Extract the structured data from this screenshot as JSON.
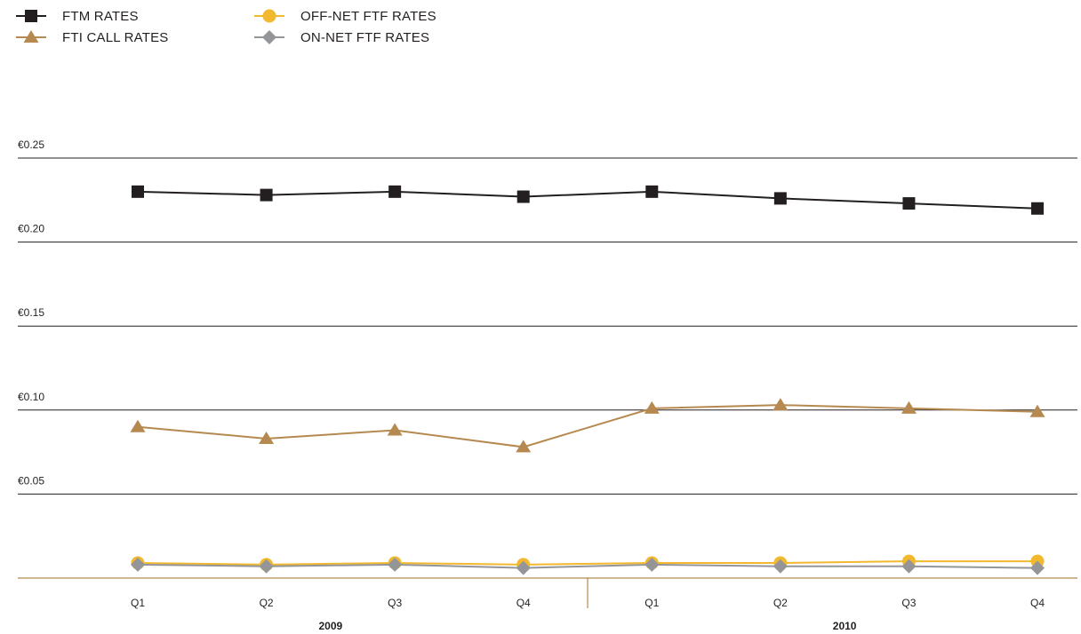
{
  "chart_data": {
    "type": "line",
    "categories": [
      "Q1",
      "Q2",
      "Q3",
      "Q4",
      "Q1",
      "Q2",
      "Q3",
      "Q4"
    ],
    "groups": [
      {
        "label": "2009",
        "span": [
          0,
          3
        ]
      },
      {
        "label": "2010",
        "span": [
          4,
          7
        ]
      }
    ],
    "y_ticks": [
      {
        "value": 0.25,
        "label": "€0.25"
      },
      {
        "value": 0.2,
        "label": "€0.20"
      },
      {
        "value": 0.15,
        "label": "€0.15"
      },
      {
        "value": 0.1,
        "label": "€0.10"
      },
      {
        "value": 0.05,
        "label": "€0.05"
      }
    ],
    "ylim": [
      0,
      0.25
    ],
    "grid": true,
    "legend_position": "top-left",
    "series": [
      {
        "name": "FTM RATES",
        "marker": "square",
        "color": "#231f20",
        "values": [
          0.23,
          0.228,
          0.23,
          0.227,
          0.23,
          0.226,
          0.223,
          0.22
        ]
      },
      {
        "name": "FTI CALL RATES",
        "marker": "triangle",
        "color": "#b5894f",
        "values": [
          0.09,
          0.083,
          0.088,
          0.078,
          0.101,
          0.103,
          0.101,
          0.099
        ]
      },
      {
        "name": "OFF-NET FTF RATES",
        "marker": "circle",
        "color": "#f2b82e",
        "values": [
          0.009,
          0.008,
          0.009,
          0.008,
          0.009,
          0.009,
          0.01,
          0.01
        ]
      },
      {
        "name": "ON-NET FTF RATES",
        "marker": "diamond",
        "color": "#939598",
        "values": [
          0.008,
          0.007,
          0.008,
          0.006,
          0.008,
          0.007,
          0.007,
          0.006
        ]
      }
    ]
  }
}
